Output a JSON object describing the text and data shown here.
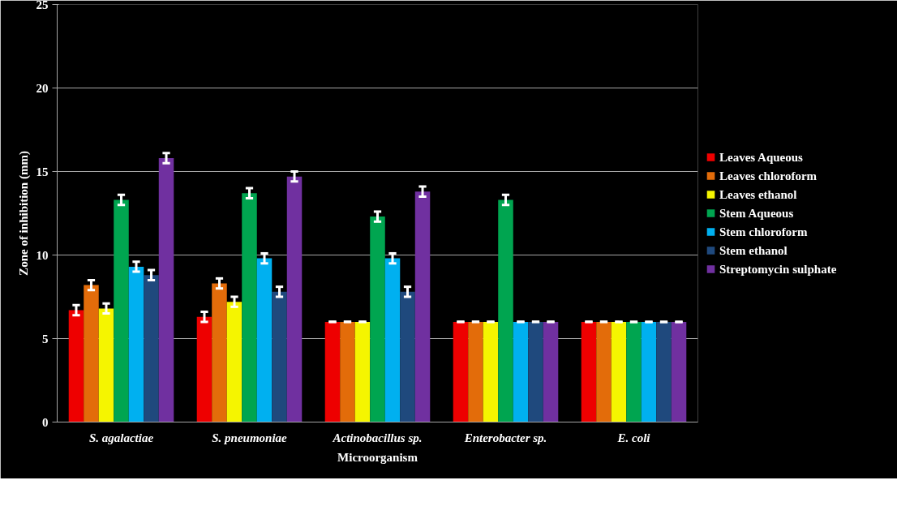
{
  "chart_data": {
    "type": "bar",
    "xlabel": "Microorganism",
    "ylabel": "Zone of inhibition (mm)",
    "categories": [
      "S. agalactiae",
      "S. pneumoniae",
      "Actinobacillus sp.",
      "Enterobacter sp.",
      "E. coli"
    ],
    "series": [
      {
        "name": "Leaves Aqueous",
        "color": "#ee0000",
        "values": [
          6.7,
          6.3,
          6,
          6,
          6
        ],
        "errors": [
          0.3,
          0.3,
          0,
          0,
          0
        ]
      },
      {
        "name": "Leaves chloroform",
        "color": "#e36c0a",
        "values": [
          8.2,
          8.3,
          6,
          6,
          6
        ],
        "errors": [
          0.3,
          0.3,
          0,
          0,
          0
        ]
      },
      {
        "name": "Leaves ethanol",
        "color": "#f5f500",
        "values": [
          6.8,
          7.2,
          6,
          6,
          6
        ],
        "errors": [
          0.3,
          0.3,
          0,
          0,
          0
        ]
      },
      {
        "name": "Stem Aqueous",
        "color": "#00a550",
        "values": [
          13.3,
          13.7,
          12.3,
          13.3,
          6
        ],
        "errors": [
          0.3,
          0.3,
          0.3,
          0.3,
          0
        ]
      },
      {
        "name": "Stem chloroform",
        "color": "#00b0f0",
        "values": [
          9.3,
          9.8,
          9.8,
          6,
          6
        ],
        "errors": [
          0.3,
          0.3,
          0.3,
          0,
          0
        ]
      },
      {
        "name": "Stem ethanol",
        "color": "#1f497d",
        "values": [
          8.8,
          7.8,
          7.8,
          6,
          6
        ],
        "errors": [
          0.3,
          0.3,
          0.3,
          0,
          0
        ]
      },
      {
        "name": "Streptomycin sulphate",
        "color": "#7030a0",
        "values": [
          15.8,
          14.7,
          13.8,
          6,
          6
        ],
        "errors": [
          0.3,
          0.3,
          0.3,
          0,
          0
        ]
      }
    ],
    "ylim": [
      0,
      25
    ],
    "yticks": [
      0,
      5,
      10,
      15,
      20,
      25
    ],
    "grid": "y",
    "legend": "right"
  }
}
